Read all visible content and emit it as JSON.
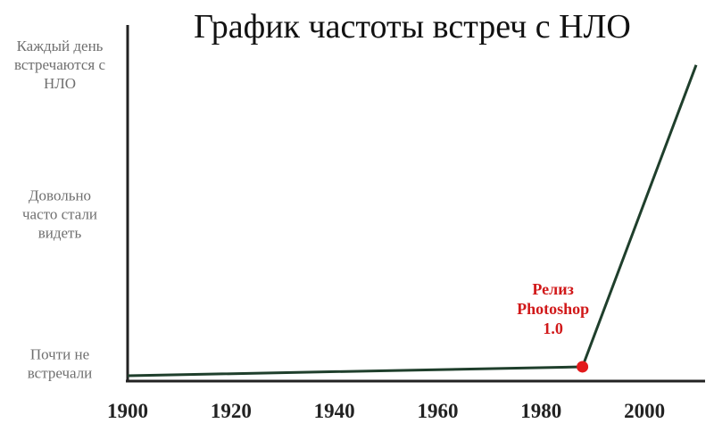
{
  "chart_data": {
    "type": "line",
    "title": "График частоты встреч с НЛО",
    "xlabel": "",
    "ylabel": "",
    "xlim": [
      1900,
      2010
    ],
    "x_ticks": [
      1900,
      1920,
      1940,
      1960,
      1980,
      2000
    ],
    "ylim": [
      1,
      3.3
    ],
    "y_ticks": [
      {
        "value": 1,
        "lines": [
          "Почти не",
          "встречали"
        ]
      },
      {
        "value": 2,
        "lines": [
          "Довольно",
          "часто стали",
          "видеть"
        ]
      },
      {
        "value": 3,
        "lines": [
          "Каждый день",
          "встречаются с",
          "НЛО"
        ]
      }
    ],
    "series": [
      {
        "x": [
          1900,
          1988,
          2010
        ],
        "y": [
          1.0,
          1.06,
          3.08
        ]
      }
    ],
    "annotation": {
      "x": 1988,
      "y": 1.06,
      "lines": [
        "Релиз",
        "Photoshop",
        "1.0"
      ]
    },
    "colors": {
      "line": "#1f3f2c",
      "axis": "#222222",
      "marker": "#e31a1c",
      "annotation": "#d1191a"
    },
    "grid": false
  }
}
